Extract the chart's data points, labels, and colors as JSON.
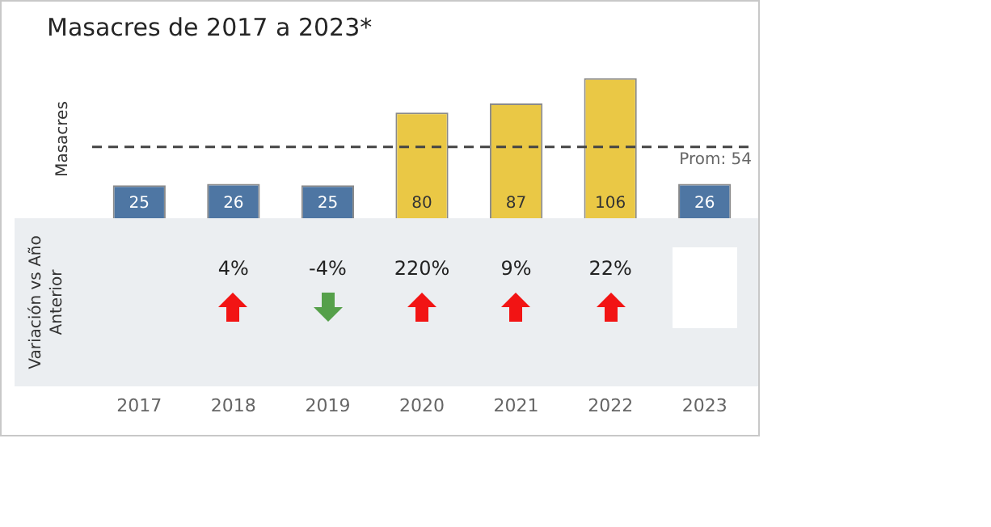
{
  "chart_data": {
    "type": "bar",
    "title": "Masacres de 2017 a 2023*",
    "ylabel": "Masacres",
    "categories": [
      "2017",
      "2018",
      "2019",
      "2020",
      "2021",
      "2022",
      "2023"
    ],
    "values": [
      25,
      26,
      25,
      80,
      87,
      106,
      26
    ],
    "colors": [
      "#4e76a3",
      "#4e76a3",
      "#4e76a3",
      "#eac845",
      "#eac845",
      "#eac845",
      "#4e76a3"
    ],
    "data_labels": true,
    "tick_labels": "x",
    "grid": false,
    "legend": false,
    "ref_lines": [
      {
        "axis": "y",
        "value": 54,
        "label": "Prom: 54",
        "color": "#444444",
        "line_style": "dashed"
      }
    ],
    "annotations": [
      "Variación vs Año Anterior",
      "4%",
      "-4%",
      "220%",
      "9%",
      "22%"
    ]
  }
}
